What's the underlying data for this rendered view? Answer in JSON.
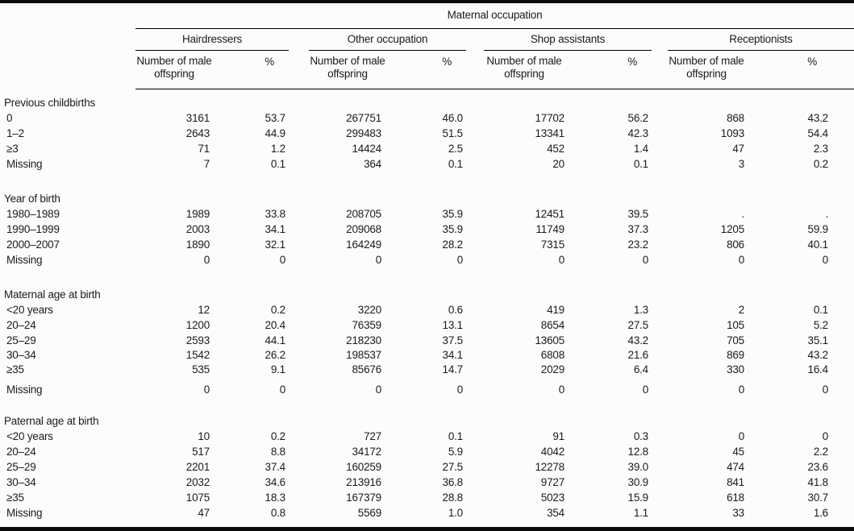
{
  "table": {
    "top_header": "Maternal occupation",
    "groups": [
      {
        "label": "Hairdressers"
      },
      {
        "label": "Other occupation"
      },
      {
        "label": "Shop assistants"
      },
      {
        "label": "Receptionists"
      }
    ],
    "col_count": "Number of male offspring",
    "col_pct": "%",
    "sections": [
      {
        "title": "Previous childbirths",
        "rows": [
          {
            "label": "0",
            "values": [
              "3161",
              "53.7",
              "267751",
              "46.0",
              "17702",
              "56.2",
              "868",
              "43.2"
            ]
          },
          {
            "label": "1–2",
            "values": [
              "2643",
              "44.9",
              "299483",
              "51.5",
              "13341",
              "42.3",
              "1093",
              "54.4"
            ]
          },
          {
            "label": "≥3",
            "values": [
              "71",
              "1.2",
              "14424",
              "2.5",
              "452",
              "1.4",
              "47",
              "2.3"
            ]
          },
          {
            "label": "Missing",
            "values": [
              "7",
              "0.1",
              "364",
              "0.1",
              "20",
              "0.1",
              "3",
              "0.2"
            ]
          }
        ]
      },
      {
        "title": "Year of birth",
        "rows": [
          {
            "label": "1980–1989",
            "values": [
              "1989",
              "33.8",
              "208705",
              "35.9",
              "12451",
              "39.5",
              ".",
              "."
            ]
          },
          {
            "label": "1990–1999",
            "values": [
              "2003",
              "34.1",
              "209068",
              "35.9",
              "11749",
              "37.3",
              "1205",
              "59.9"
            ]
          },
          {
            "label": "2000–2007",
            "values": [
              "1890",
              "32.1",
              "164249",
              "28.2",
              "7315",
              "23.2",
              "806",
              "40.1"
            ]
          },
          {
            "label": "Missing",
            "values": [
              "0",
              "0",
              "0",
              "0",
              "0",
              "0",
              "0",
              "0"
            ]
          }
        ]
      },
      {
        "title": "Maternal age at birth",
        "rows": [
          {
            "label": "<20 years",
            "values": [
              "12",
              "0.2",
              "3220",
              "0.6",
              "419",
              "1.3",
              "2",
              "0.1"
            ]
          },
          {
            "label": "20–24",
            "values": [
              "1200",
              "20.4",
              "76359",
              "13.1",
              "8654",
              "27.5",
              "105",
              "5.2"
            ]
          },
          {
            "label": "25–29",
            "values": [
              "2593",
              "44.1",
              "218230",
              "37.5",
              "13605",
              "43.2",
              "705",
              "35.1"
            ]
          },
          {
            "label": "30–34",
            "values": [
              "1542",
              "26.2",
              "198537",
              "34.1",
              "6808",
              "21.6",
              "869",
              "43.2"
            ]
          },
          {
            "label": "≥35",
            "values": [
              "535",
              "9.1",
              "85676",
              "14.7",
              "2029",
              "6.4",
              "330",
              "16.4"
            ]
          },
          {
            "label": "Missing",
            "values": [
              "0",
              "0",
              "0",
              "0",
              "0",
              "0",
              "0",
              "0"
            ]
          }
        ]
      },
      {
        "title": "Paternal age at birth",
        "rows": [
          {
            "label": "<20 years",
            "values": [
              "10",
              "0.2",
              "727",
              "0.1",
              "91",
              "0.3",
              "0",
              "0"
            ]
          },
          {
            "label": "20–24",
            "values": [
              "517",
              "8.8",
              "34172",
              "5.9",
              "4042",
              "12.8",
              "45",
              "2.2"
            ]
          },
          {
            "label": "25–29",
            "values": [
              "2201",
              "37.4",
              "160259",
              "27.5",
              "12278",
              "39.0",
              "474",
              "23.6"
            ]
          },
          {
            "label": "30–34",
            "values": [
              "2032",
              "34.6",
              "213916",
              "36.8",
              "9727",
              "30.9",
              "841",
              "41.8"
            ]
          },
          {
            "label": "≥35",
            "values": [
              "1075",
              "18.3",
              "167379",
              "28.8",
              "5023",
              "15.9",
              "618",
              "30.7"
            ]
          },
          {
            "label": "Missing",
            "values": [
              "47",
              "0.8",
              "5569",
              "1.0",
              "354",
              "1.1",
              "33",
              "1.6"
            ]
          }
        ]
      }
    ]
  }
}
